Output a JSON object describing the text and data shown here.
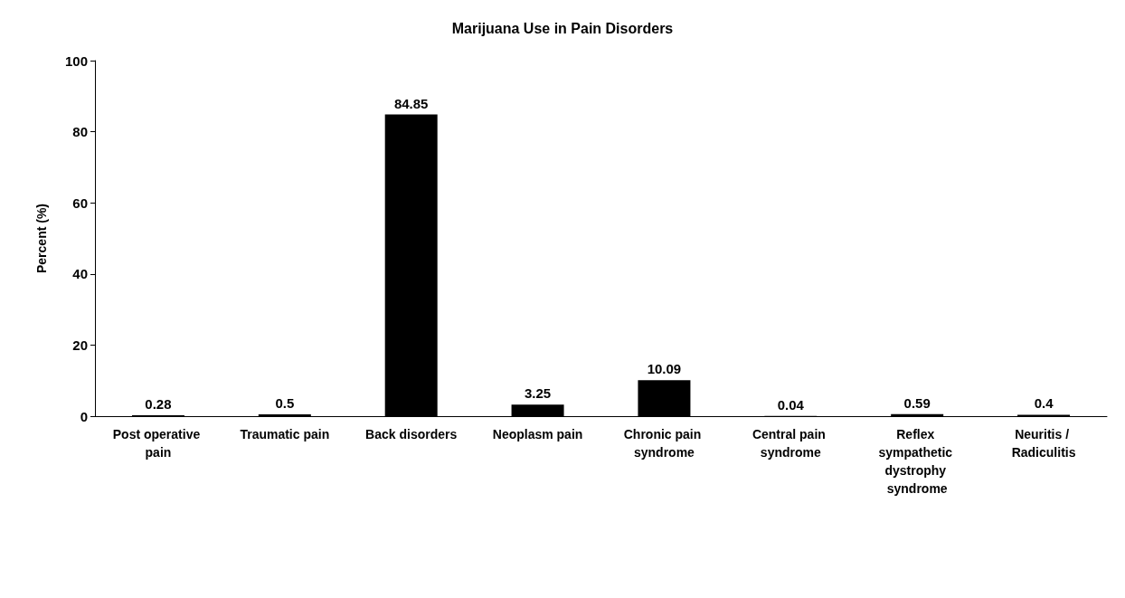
{
  "chart_data": {
    "type": "bar",
    "title": "Marijuana Use in Pain Disorders",
    "ylabel": "Percent (%)",
    "categories": [
      "Post operative pain",
      "Traumatic pain",
      "Back disorders",
      "Neoplasm pain",
      "Chronic pain syndrome",
      "Central pain syndrome",
      "Reflex sympathetic dystrophy syndrome",
      "Neuritis / Radiculitis"
    ],
    "values": [
      0.28,
      0.5,
      84.85,
      3.25,
      10.09,
      0.04,
      0.59,
      0.4
    ],
    "color": "#000000",
    "ylim": [
      0,
      100
    ],
    "yticks": [
      0,
      20,
      40,
      60,
      80,
      100
    ],
    "grid": false,
    "data_labels": true
  }
}
